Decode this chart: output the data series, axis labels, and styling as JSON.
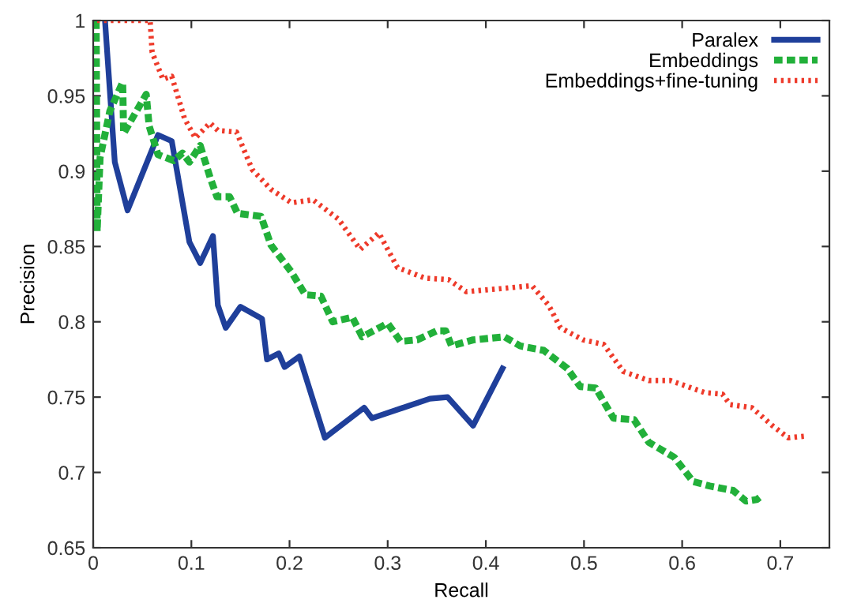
{
  "chart_data": {
    "type": "line",
    "xlabel": "Recall",
    "ylabel": "Precision",
    "xlim": [
      0,
      0.75
    ],
    "ylim": [
      0.65,
      1
    ],
    "xticks": [
      0,
      0.1,
      0.2,
      0.3,
      0.4,
      0.5,
      0.6,
      0.7
    ],
    "yticks": [
      0.65,
      0.7,
      0.75,
      0.8,
      0.85,
      0.9,
      0.95,
      1
    ],
    "grid": false,
    "legend": "top right",
    "marker": "none",
    "series": [
      {
        "name": "Paralex",
        "color": "#1f3f9a",
        "line_style": "solid",
        "x": [
          0.012,
          0.022,
          0.035,
          0.066,
          0.08,
          0.098,
          0.109,
          0.122,
          0.127,
          0.135,
          0.15,
          0.172,
          0.177,
          0.189,
          0.195,
          0.21,
          0.236,
          0.276,
          0.284,
          0.343,
          0.361,
          0.387,
          0.417
        ],
        "values": [
          1.0,
          0.906,
          0.874,
          0.924,
          0.92,
          0.853,
          0.839,
          0.857,
          0.811,
          0.796,
          0.81,
          0.802,
          0.775,
          0.779,
          0.77,
          0.777,
          0.723,
          0.743,
          0.736,
          0.749,
          0.75,
          0.731,
          0.769
        ]
      },
      {
        "name": "Embeddings",
        "color": "#22b03a",
        "line_style": "dashed",
        "x": [
          0.003,
          0.004,
          0.007,
          0.017,
          0.03,
          0.031,
          0.038,
          0.054,
          0.057,
          0.066,
          0.082,
          0.091,
          0.098,
          0.109,
          0.119,
          0.126,
          0.139,
          0.147,
          0.171,
          0.181,
          0.202,
          0.216,
          0.232,
          0.244,
          0.264,
          0.274,
          0.3,
          0.313,
          0.33,
          0.35,
          0.359,
          0.365,
          0.387,
          0.419,
          0.435,
          0.459,
          0.483,
          0.496,
          0.512,
          0.53,
          0.551,
          0.566,
          0.592,
          0.611,
          0.628,
          0.652,
          0.665,
          0.676,
          0.682
        ],
        "values": [
          1.0,
          0.86,
          0.909,
          0.94,
          0.959,
          0.925,
          0.933,
          0.951,
          0.93,
          0.911,
          0.907,
          0.912,
          0.906,
          0.917,
          0.896,
          0.883,
          0.883,
          0.872,
          0.87,
          0.851,
          0.833,
          0.818,
          0.817,
          0.8,
          0.803,
          0.79,
          0.799,
          0.787,
          0.788,
          0.794,
          0.794,
          0.784,
          0.788,
          0.79,
          0.784,
          0.781,
          0.769,
          0.757,
          0.756,
          0.736,
          0.735,
          0.72,
          0.71,
          0.694,
          0.691,
          0.688,
          0.681,
          0.682,
          0.685
        ]
      },
      {
        "name": "Embeddings+fine-tuning",
        "color": "#ee3a2a",
        "line_style": "dotted",
        "x": [
          0.004,
          0.058,
          0.06,
          0.071,
          0.08,
          0.093,
          0.104,
          0.119,
          0.127,
          0.146,
          0.162,
          0.181,
          0.202,
          0.224,
          0.25,
          0.272,
          0.291,
          0.31,
          0.338,
          0.362,
          0.38,
          0.415,
          0.447,
          0.464,
          0.476,
          0.499,
          0.52,
          0.54,
          0.566,
          0.588,
          0.623,
          0.641,
          0.649,
          0.671,
          0.692,
          0.708,
          0.724
        ],
        "values": [
          1.0,
          1.0,
          0.979,
          0.961,
          0.963,
          0.935,
          0.922,
          0.932,
          0.927,
          0.926,
          0.901,
          0.888,
          0.879,
          0.881,
          0.868,
          0.848,
          0.859,
          0.836,
          0.829,
          0.828,
          0.82,
          0.822,
          0.824,
          0.811,
          0.796,
          0.788,
          0.785,
          0.767,
          0.761,
          0.761,
          0.753,
          0.752,
          0.745,
          0.743,
          0.731,
          0.723,
          0.724
        ]
      }
    ]
  }
}
